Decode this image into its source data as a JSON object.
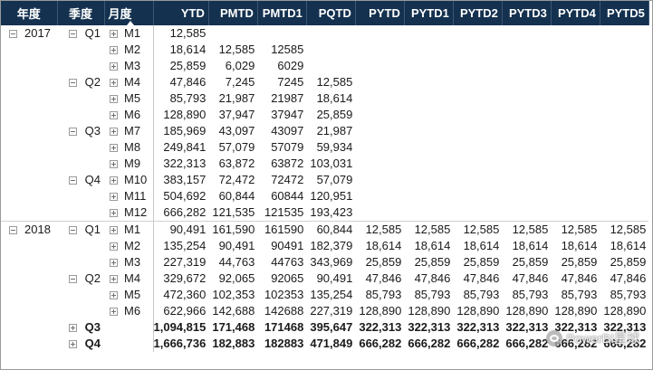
{
  "headers": {
    "year": "年度",
    "quarter": "季度",
    "month": "月度",
    "measures": [
      "YTD",
      "PMTD",
      "PMTD1",
      "PQTD",
      "PYTD",
      "PYTD1",
      "PYTD2",
      "PYTD3",
      "PYTD4",
      "PYTD5"
    ]
  },
  "rows": [
    {
      "year": "2017",
      "quarter": "Q1",
      "month": "M1",
      "values": [
        "12,585",
        "",
        "",
        "",
        "",
        "",
        "",
        "",
        "",
        ""
      ]
    },
    {
      "year": "",
      "quarter": "",
      "month": "M2",
      "values": [
        "18,614",
        "12,585",
        "12585",
        "",
        "",
        "",
        "",
        "",
        "",
        ""
      ]
    },
    {
      "year": "",
      "quarter": "",
      "month": "M3",
      "values": [
        "25,859",
        "6,029",
        "6029",
        "",
        "",
        "",
        "",
        "",
        "",
        ""
      ]
    },
    {
      "year": "",
      "quarter": "Q2",
      "month": "M4",
      "values": [
        "47,846",
        "7,245",
        "7245",
        "12,585",
        "",
        "",
        "",
        "",
        "",
        ""
      ]
    },
    {
      "year": "",
      "quarter": "",
      "month": "M5",
      "values": [
        "85,793",
        "21,987",
        "21987",
        "18,614",
        "",
        "",
        "",
        "",
        "",
        ""
      ]
    },
    {
      "year": "",
      "quarter": "",
      "month": "M6",
      "values": [
        "128,890",
        "37,947",
        "37947",
        "25,859",
        "",
        "",
        "",
        "",
        "",
        ""
      ]
    },
    {
      "year": "",
      "quarter": "Q3",
      "month": "M7",
      "values": [
        "185,969",
        "43,097",
        "43097",
        "21,987",
        "",
        "",
        "",
        "",
        "",
        ""
      ]
    },
    {
      "year": "",
      "quarter": "",
      "month": "M8",
      "values": [
        "249,841",
        "57,079",
        "57079",
        "59,934",
        "",
        "",
        "",
        "",
        "",
        ""
      ]
    },
    {
      "year": "",
      "quarter": "",
      "month": "M9",
      "values": [
        "322,313",
        "63,872",
        "63872",
        "103,031",
        "",
        "",
        "",
        "",
        "",
        ""
      ]
    },
    {
      "year": "",
      "quarter": "Q4",
      "month": "M10",
      "values": [
        "383,157",
        "72,472",
        "72472",
        "57,079",
        "",
        "",
        "",
        "",
        "",
        ""
      ]
    },
    {
      "year": "",
      "quarter": "",
      "month": "M11",
      "values": [
        "504,692",
        "60,844",
        "60844",
        "120,951",
        "",
        "",
        "",
        "",
        "",
        ""
      ]
    },
    {
      "year": "",
      "quarter": "",
      "month": "M12",
      "values": [
        "666,282",
        "121,535",
        "121535",
        "193,423",
        "",
        "",
        "",
        "",
        "",
        ""
      ]
    },
    {
      "year": "2018",
      "quarter": "Q1",
      "month": "M1",
      "values": [
        "90,491",
        "161,590",
        "161590",
        "60,844",
        "12,585",
        "12,585",
        "12,585",
        "12,585",
        "12,585",
        "12,585"
      ]
    },
    {
      "year": "",
      "quarter": "",
      "month": "M2",
      "values": [
        "135,254",
        "90,491",
        "90491",
        "182,379",
        "18,614",
        "18,614",
        "18,614",
        "18,614",
        "18,614",
        "18,614"
      ]
    },
    {
      "year": "",
      "quarter": "",
      "month": "M3",
      "values": [
        "227,319",
        "44,763",
        "44763",
        "343,969",
        "25,859",
        "25,859",
        "25,859",
        "25,859",
        "25,859",
        "25,859"
      ]
    },
    {
      "year": "",
      "quarter": "Q2",
      "month": "M4",
      "values": [
        "329,672",
        "92,065",
        "92065",
        "90,491",
        "47,846",
        "47,846",
        "47,846",
        "47,846",
        "47,846",
        "47,846"
      ]
    },
    {
      "year": "",
      "quarter": "",
      "month": "M5",
      "values": [
        "472,360",
        "102,353",
        "102353",
        "135,254",
        "85,793",
        "85,793",
        "85,793",
        "85,793",
        "85,793",
        "85,793"
      ]
    },
    {
      "year": "",
      "quarter": "",
      "month": "M6",
      "values": [
        "622,966",
        "142,688",
        "142688",
        "227,319",
        "128,890",
        "128,890",
        "128,890",
        "128,890",
        "128,890",
        "128,890"
      ]
    },
    {
      "year": "",
      "quarter": "Q3",
      "month": "",
      "values": [
        "1,094,815",
        "171,468",
        "171468",
        "395,647",
        "322,313",
        "322,313",
        "322,313",
        "322,313",
        "322,313",
        "322,313"
      ]
    },
    {
      "year": "",
      "quarter": "Q4",
      "month": "",
      "values": [
        "1,666,736",
        "182,883",
        "182883",
        "471,849",
        "666,282",
        "666,282",
        "666,282",
        "666,282",
        "666,282",
        "666,282"
      ]
    }
  ],
  "watermark": "PowerBI星球"
}
